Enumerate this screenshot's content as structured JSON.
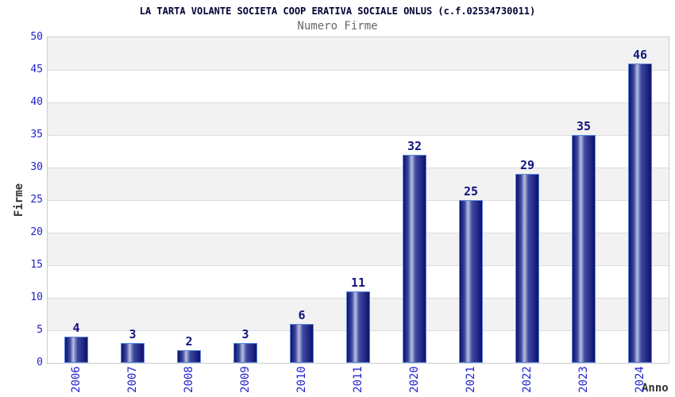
{
  "chart_data": {
    "type": "bar",
    "title": "LA TARTA VOLANTE SOCIETA COOP ERATIVA SOCIALE ONLUS (c.f.02534730011)",
    "subtitle": "Numero Firme",
    "xlabel": "Anno",
    "ylabel": "Firme",
    "categories": [
      "2006",
      "2007",
      "2008",
      "2009",
      "2010",
      "2011",
      "2020",
      "2021",
      "2022",
      "2023",
      "2024"
    ],
    "values": [
      4,
      3,
      2,
      3,
      6,
      11,
      32,
      25,
      29,
      35,
      46
    ],
    "ylim": [
      0,
      50
    ],
    "ytick_step": 5,
    "grid": "horizontal-bands-alternating",
    "legend": "none",
    "colors": {
      "background": "#ffffff",
      "title": "#000033",
      "subtitle": "#666666",
      "tick_label": "#2222cc",
      "value_label": "#14147e",
      "axis_label": "#333333",
      "bar_dark": "#0d116e",
      "bar_mid": "#3d49a0",
      "bar_light": "#b8bfe0",
      "bar_border": "#5a87dd",
      "band_alt": "#f2f2f2",
      "band_main": "#ffffff",
      "plot_border": "#cccccc",
      "gridline": "#dcdcdc"
    }
  }
}
